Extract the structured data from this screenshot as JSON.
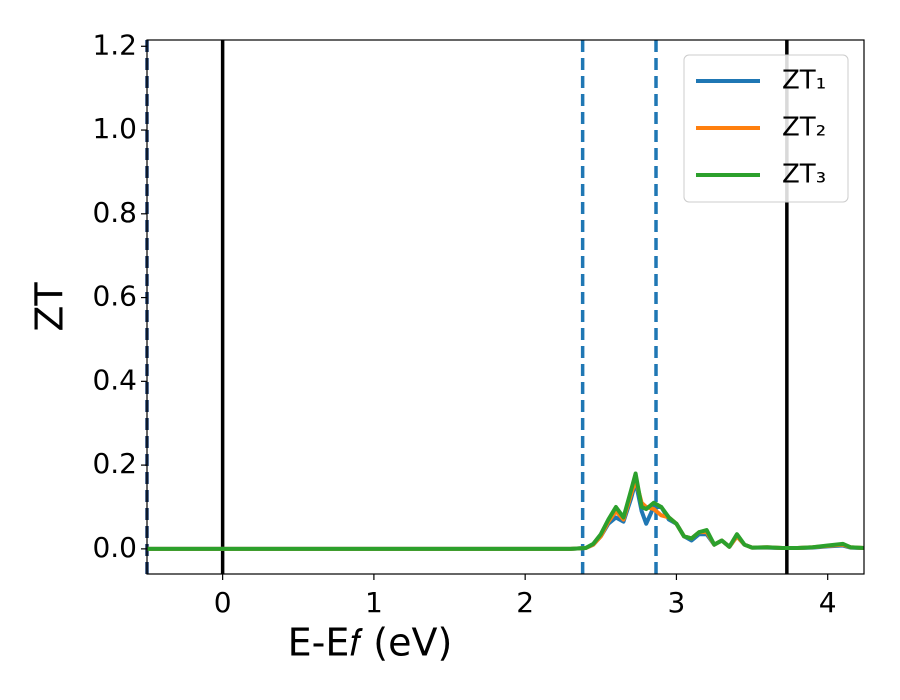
{
  "chart_data": {
    "type": "line",
    "x_label": "E-E𝑓 (eV)",
    "y_label": "ZT",
    "x": [
      -0.5,
      2.3,
      2.4,
      2.45,
      2.5,
      2.55,
      2.6,
      2.65,
      2.7,
      2.73,
      2.77,
      2.8,
      2.85,
      2.9,
      2.95,
      3.0,
      3.05,
      3.1,
      3.15,
      3.2,
      3.25,
      3.3,
      3.35,
      3.4,
      3.45,
      3.5,
      3.6,
      3.7,
      3.8,
      3.9,
      4.0,
      4.1,
      4.15,
      4.24
    ],
    "series": [
      {
        "name": "ZT₁",
        "color": "#1f77b4",
        "values": [
          0,
          0,
          0.002,
          0.01,
          0.03,
          0.06,
          0.075,
          0.065,
          0.12,
          0.16,
          0.09,
          0.06,
          0.1,
          0.1,
          0.07,
          0.06,
          0.03,
          0.02,
          0.035,
          0.035,
          0.01,
          0.02,
          0.005,
          0.03,
          0.01,
          0.003,
          0.003,
          0.002,
          0.002,
          0.003,
          0.006,
          0.008,
          0.003,
          0.002
        ]
      },
      {
        "name": "ZT₂",
        "color": "#ff7f0e",
        "values": [
          0,
          0,
          0.002,
          0.01,
          0.03,
          0.065,
          0.09,
          0.07,
          0.13,
          0.165,
          0.11,
          0.1,
          0.095,
          0.08,
          0.075,
          0.06,
          0.03,
          0.025,
          0.04,
          0.04,
          0.01,
          0.02,
          0.005,
          0.03,
          0.01,
          0.003,
          0.004,
          0.002,
          0.002,
          0.004,
          0.007,
          0.01,
          0.004,
          0.002
        ]
      },
      {
        "name": "ZT₃",
        "color": "#2ca02c",
        "values": [
          0,
          0,
          0.002,
          0.012,
          0.035,
          0.07,
          0.1,
          0.075,
          0.14,
          0.18,
          0.1,
          0.095,
          0.11,
          0.1,
          0.075,
          0.06,
          0.03,
          0.025,
          0.04,
          0.045,
          0.01,
          0.02,
          0.005,
          0.035,
          0.01,
          0.003,
          0.004,
          0.002,
          0.002,
          0.004,
          0.008,
          0.012,
          0.004,
          0.002
        ]
      }
    ],
    "vlines": [
      {
        "x": -0.5,
        "color": "#1f3f6e",
        "dashed": true
      },
      {
        "x": 0,
        "color": "#000000",
        "dashed": false
      },
      {
        "x": 2.38,
        "color": "#1f77b4",
        "dashed": true
      },
      {
        "x": 2.865,
        "color": "#1f77b4",
        "dashed": true
      },
      {
        "x": 3.73,
        "color": "#000000",
        "dashed": false
      }
    ],
    "xlim": [
      -0.5,
      4.24
    ],
    "ylim": [
      -0.06,
      1.215
    ],
    "xticks": [
      0,
      1,
      2,
      3,
      4
    ],
    "yticks": [
      {
        "value": 0,
        "label": "0.0"
      },
      {
        "value": 0.2,
        "label": "0.2"
      },
      {
        "value": 0.4,
        "label": "0.4"
      },
      {
        "value": 0.6,
        "label": "0.6"
      },
      {
        "value": 0.8,
        "label": "0.8"
      },
      {
        "value": 1,
        "label": "1.0"
      },
      {
        "value": 1.2,
        "label": "1.2"
      }
    ],
    "legend": "upper right"
  }
}
